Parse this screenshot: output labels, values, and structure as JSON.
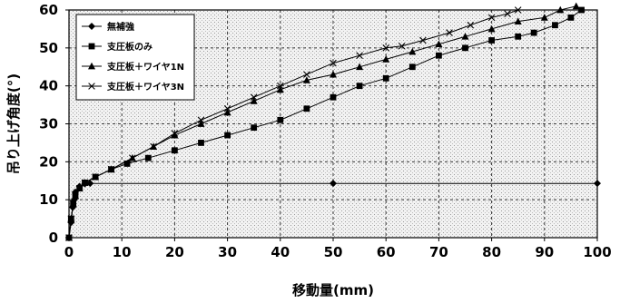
{
  "chart_data": {
    "type": "line",
    "title": "",
    "xlabel": "移動量(mm)",
    "ylabel": "吊り上げ角度(°)",
    "xlim": [
      0,
      100
    ],
    "ylim": [
      0,
      60
    ],
    "xticks": [
      0,
      10,
      20,
      30,
      40,
      50,
      60,
      70,
      80,
      90,
      100
    ],
    "yticks": [
      0,
      10,
      20,
      30,
      40,
      50,
      60
    ],
    "grid": true,
    "legend_position": "top-left",
    "series": [
      {
        "name": "無補強",
        "marker": "diamond",
        "points": [
          [
            0,
            0
          ],
          [
            0.4,
            4
          ],
          [
            0.7,
            8
          ],
          [
            1,
            10
          ],
          [
            1.2,
            12
          ],
          [
            2,
            13.5
          ],
          [
            3,
            14.2
          ],
          [
            4,
            14.3
          ],
          [
            50,
            14.3
          ],
          [
            100,
            14.3
          ]
        ]
      },
      {
        "name": "支圧板のみ",
        "marker": "square",
        "points": [
          [
            0,
            0
          ],
          [
            0.4,
            5
          ],
          [
            0.8,
            9
          ],
          [
            1.2,
            11
          ],
          [
            2,
            13
          ],
          [
            3,
            14.5
          ],
          [
            5,
            16
          ],
          [
            8,
            18
          ],
          [
            11,
            19.5
          ],
          [
            15,
            21
          ],
          [
            20,
            23
          ],
          [
            25,
            25
          ],
          [
            30,
            27
          ],
          [
            35,
            29
          ],
          [
            40,
            31
          ],
          [
            45,
            34
          ],
          [
            50,
            37
          ],
          [
            55,
            40
          ],
          [
            60,
            42
          ],
          [
            65,
            45
          ],
          [
            70,
            48
          ],
          [
            75,
            50
          ],
          [
            80,
            52
          ],
          [
            85,
            53
          ],
          [
            88,
            54
          ],
          [
            92,
            56
          ],
          [
            95,
            58
          ],
          [
            97,
            60
          ]
        ]
      },
      {
        "name": "支圧板＋ワイヤ1N",
        "marker": "triangle",
        "points": [
          [
            0,
            0
          ],
          [
            0.4,
            5
          ],
          [
            0.8,
            9
          ],
          [
            1.2,
            11
          ],
          [
            2,
            13
          ],
          [
            3,
            14.5
          ],
          [
            5,
            16
          ],
          [
            8,
            18
          ],
          [
            12,
            21
          ],
          [
            16,
            24
          ],
          [
            20,
            27
          ],
          [
            25,
            30
          ],
          [
            30,
            33
          ],
          [
            35,
            36
          ],
          [
            40,
            39
          ],
          [
            45,
            41.5
          ],
          [
            50,
            43
          ],
          [
            55,
            45
          ],
          [
            60,
            47
          ],
          [
            65,
            49
          ],
          [
            70,
            51
          ],
          [
            75,
            53
          ],
          [
            80,
            55
          ],
          [
            85,
            57
          ],
          [
            90,
            58
          ],
          [
            93,
            60
          ],
          [
            96,
            61
          ]
        ]
      },
      {
        "name": "支圧板＋ワイヤ3N",
        "marker": "x",
        "points": [
          [
            0,
            0
          ],
          [
            0.4,
            5
          ],
          [
            0.8,
            9
          ],
          [
            1.2,
            11
          ],
          [
            2,
            13
          ],
          [
            3,
            14.5
          ],
          [
            5,
            16
          ],
          [
            8,
            18
          ],
          [
            12,
            21
          ],
          [
            16,
            24
          ],
          [
            20,
            27.5
          ],
          [
            25,
            31
          ],
          [
            30,
            34
          ],
          [
            35,
            37
          ],
          [
            40,
            40
          ],
          [
            45,
            43
          ],
          [
            50,
            46
          ],
          [
            55,
            48
          ],
          [
            60,
            50
          ],
          [
            63,
            50.5
          ],
          [
            67,
            52
          ],
          [
            72,
            54
          ],
          [
            76,
            56
          ],
          [
            80,
            58
          ],
          [
            83,
            59
          ],
          [
            85,
            60
          ]
        ]
      }
    ]
  }
}
